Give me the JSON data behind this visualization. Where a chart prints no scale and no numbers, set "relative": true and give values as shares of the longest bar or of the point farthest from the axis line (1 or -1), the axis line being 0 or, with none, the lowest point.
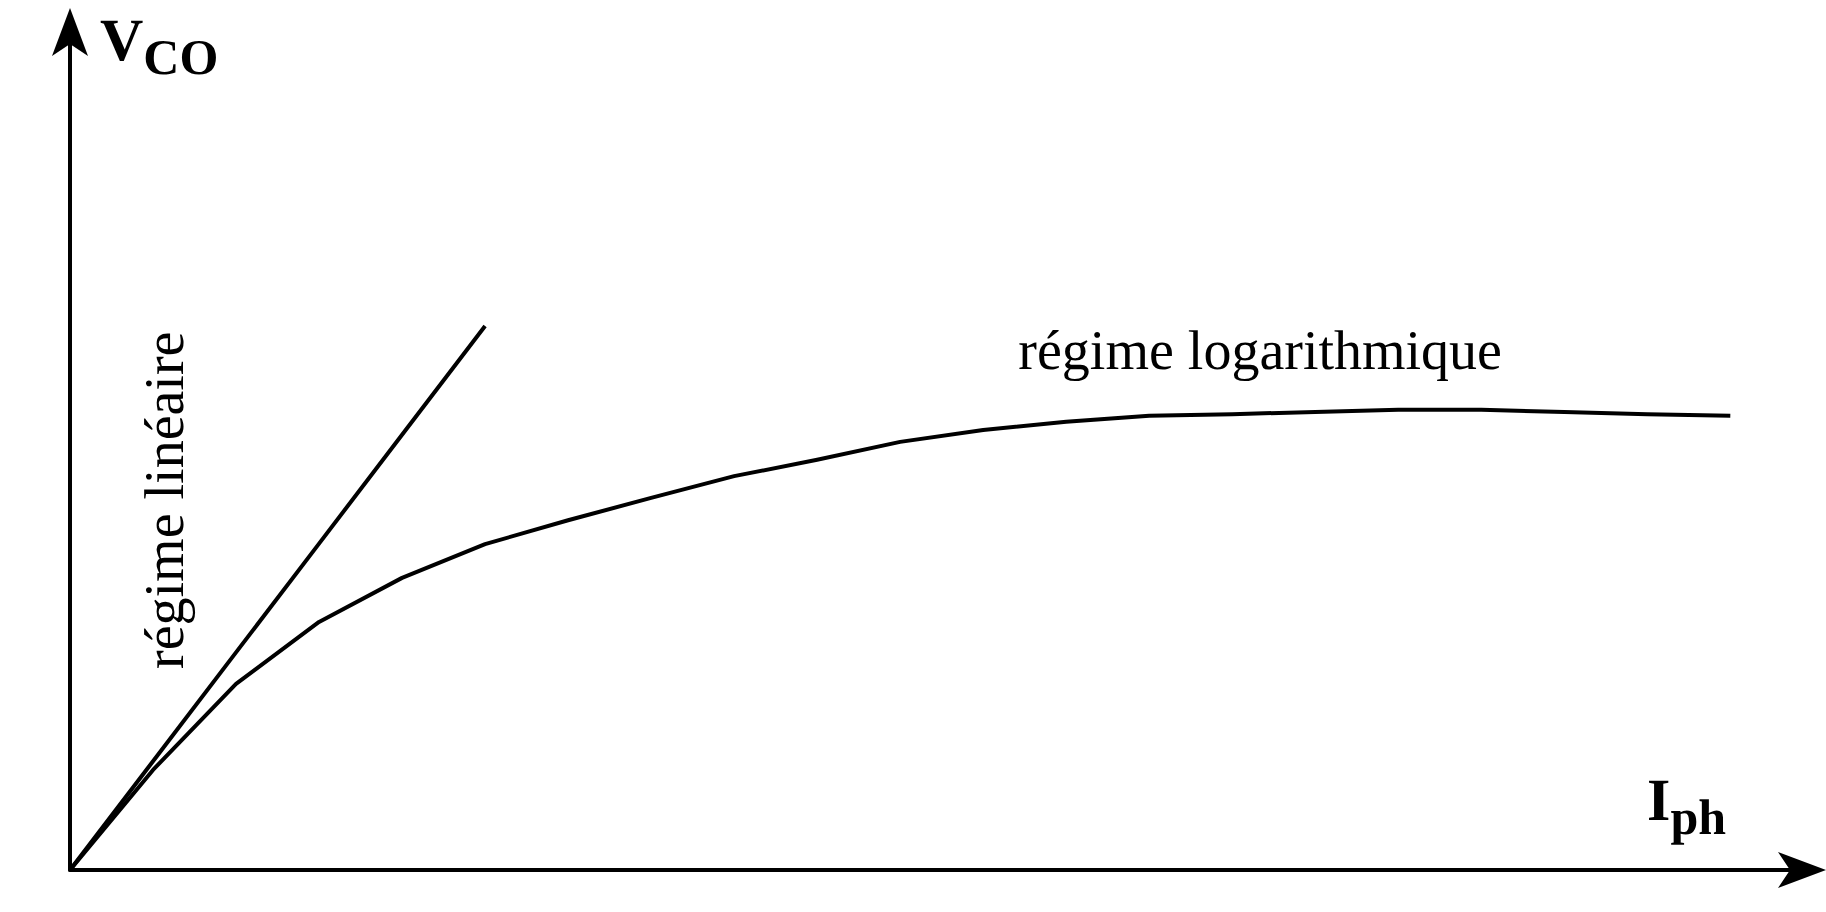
{
  "chart_data": {
    "type": "line",
    "relative": true,
    "xlabel": "I$_{ph}$",
    "ylabel": "V$_{CO}$",
    "marker": "none",
    "grid": false,
    "categories": [
      null,
      null,
      null,
      null,
      null,
      null,
      null,
      null,
      null,
      null,
      null,
      null,
      null,
      null,
      null,
      null,
      null,
      null,
      null,
      null,
      null
    ],
    "series": [
      {
        "color": "#000000",
        "values": [
          0,
          0.2,
          0.4,
          0.6,
          0.8,
          1,
          null,
          null,
          null,
          null,
          null,
          null,
          null,
          null,
          null,
          null,
          null,
          null,
          null,
          null,
          null
        ]
      },
      {
        "color": "#000000",
        "values": [
          0,
          0.184,
          0.342,
          0.456,
          0.537,
          0.599,
          0.643,
          0.684,
          0.724,
          0.754,
          0.787,
          0.809,
          0.824,
          0.835,
          0.838,
          0.842,
          0.846,
          0.846,
          0.842,
          0.838,
          0.835
        ]
      }
    ],
    "annotations": [
      "régime linéaire",
      "régime logarithmique"
    ]
  }
}
